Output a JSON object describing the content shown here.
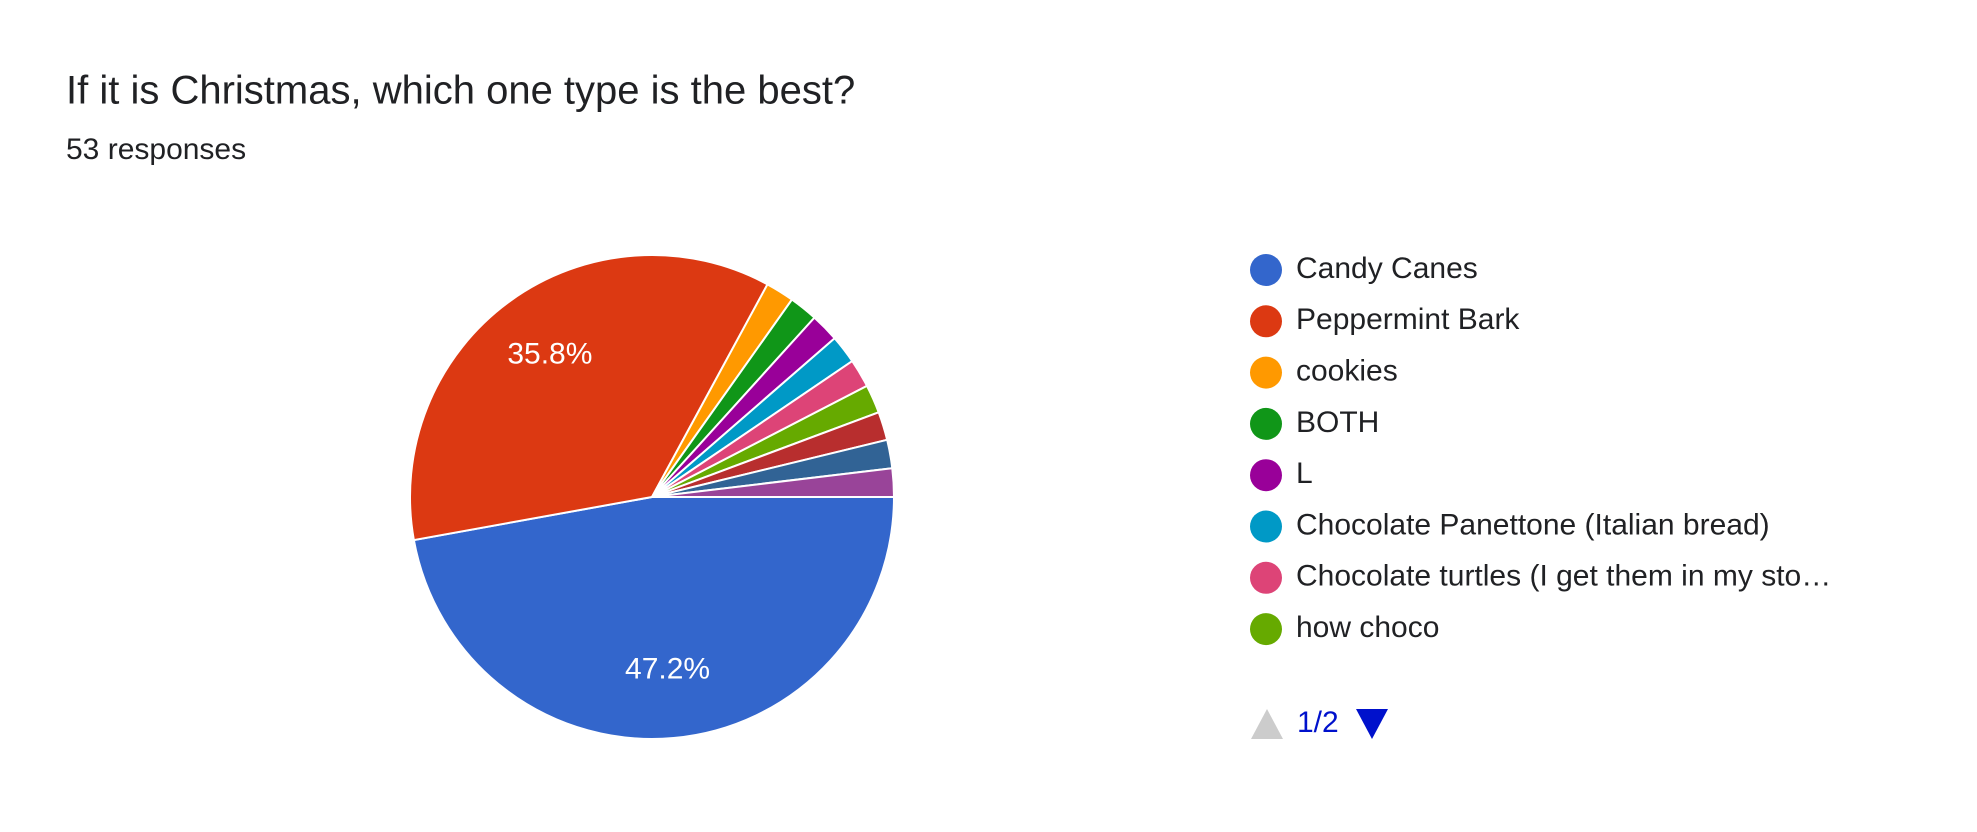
{
  "chart_data": {
    "type": "pie",
    "title": "If it is Christmas, which one type is the best?",
    "subtitle": "53 responses",
    "categories": [
      "Candy Canes",
      "Peppermint Bark",
      "cookies",
      "BOTH",
      "L",
      "Chocolate Panettone (Italian bread)",
      "Chocolate turtles (I get them in my sto…",
      "how choco",
      null,
      null,
      null
    ],
    "values": [
      47.2,
      35.8,
      1.9,
      1.9,
      1.9,
      1.9,
      1.9,
      1.9,
      1.9,
      1.9,
      1.9
    ],
    "value_labels": [
      "47.2%",
      "35.8%",
      null,
      null,
      null,
      null,
      null,
      null,
      null,
      null,
      null
    ],
    "colors": [
      "#3366cc",
      "#dc3912",
      "#ff9900",
      "#109618",
      "#990099",
      "#0099c6",
      "#dd4477",
      "#66aa00",
      "#b82e2e",
      "#316395",
      "#994499"
    ],
    "legend_position": "right",
    "legend_page": "1/2"
  }
}
